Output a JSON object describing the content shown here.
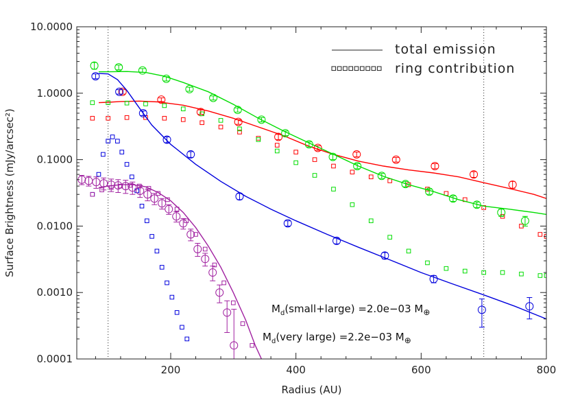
{
  "chart_data": {
    "type": "line",
    "xlabel": "Radius (AU)",
    "ylabel": "Surface Brightness (mJy/arcsec²)",
    "xlim": [
      50,
      800
    ],
    "ylim": [
      0.0001,
      10
    ],
    "y_scale": "log",
    "x_ticks": [
      200,
      400,
      600,
      800
    ],
    "x_tick_labels": [
      "200",
      "400",
      "600",
      "800"
    ],
    "y_ticks": [
      0.0001,
      0.001,
      0.01,
      0.1,
      1,
      10
    ],
    "y_tick_labels": [
      "0.0001",
      "0.0010",
      "0.0100",
      "0.1000",
      "1.0000",
      "10.0000"
    ],
    "vertical_lines": [
      100,
      700
    ],
    "legend": {
      "placement": "top-right",
      "line_label": "total emission",
      "squares_label": "ring contribution"
    },
    "annotations": {
      "small_large": {
        "prefix": "M",
        "sub": "d",
        "text": "(small+large) =2.0e−03 M",
        "symbol": "⊕"
      },
      "very_large": {
        "prefix": "M",
        "sub": "d",
        "text": "(very large) =2.2e−03 M",
        "symbol": "⊕"
      }
    },
    "series": [
      {
        "color": "#ff0000",
        "model_line": [
          [
            85,
            0.72
          ],
          [
            100,
            0.73
          ],
          [
            120,
            0.75
          ],
          [
            150,
            0.76
          ],
          [
            180,
            0.74
          ],
          [
            220,
            0.66
          ],
          [
            260,
            0.54
          ],
          [
            300,
            0.42
          ],
          [
            340,
            0.31
          ],
          [
            380,
            0.23
          ],
          [
            420,
            0.16
          ],
          [
            460,
            0.12
          ],
          [
            500,
            0.095
          ],
          [
            540,
            0.08
          ],
          [
            580,
            0.07
          ],
          [
            620,
            0.063
          ],
          [
            660,
            0.055
          ],
          [
            700,
            0.045
          ],
          [
            740,
            0.037
          ],
          [
            780,
            0.03
          ],
          [
            800,
            0.026
          ]
        ],
        "ring_squares": [
          [
            75,
            0.42
          ],
          [
            100,
            0.42
          ],
          [
            130,
            0.43
          ],
          [
            160,
            0.43
          ],
          [
            190,
            0.42
          ],
          [
            220,
            0.4
          ],
          [
            250,
            0.36
          ],
          [
            280,
            0.31
          ],
          [
            310,
            0.26
          ],
          [
            340,
            0.21
          ],
          [
            370,
            0.165
          ],
          [
            400,
            0.13
          ],
          [
            430,
            0.1
          ],
          [
            460,
            0.08
          ],
          [
            490,
            0.065
          ],
          [
            520,
            0.055
          ],
          [
            550,
            0.048
          ],
          [
            580,
            0.042
          ],
          [
            610,
            0.036
          ],
          [
            640,
            0.031
          ],
          [
            670,
            0.025
          ],
          [
            700,
            0.019
          ],
          [
            730,
            0.014
          ],
          [
            760,
            0.01
          ],
          [
            790,
            0.0075
          ],
          [
            800,
            0.007
          ]
        ],
        "obs": [
          [
            123,
            1.05,
            0.08
          ],
          [
            185,
            0.8,
            0.05
          ],
          [
            248,
            0.52,
            0.04
          ],
          [
            308,
            0.37,
            0.03
          ],
          [
            372,
            0.22,
            0.02
          ],
          [
            435,
            0.15,
            0.012
          ],
          [
            497,
            0.12,
            0.01
          ],
          [
            560,
            0.1,
            0.008
          ],
          [
            622,
            0.08,
            0.007
          ],
          [
            684,
            0.06,
            0.006
          ],
          [
            746,
            0.042,
            0.005
          ]
        ]
      },
      {
        "color": "#00dd00",
        "model_line": [
          [
            85,
            2.1
          ],
          [
            100,
            2.1
          ],
          [
            130,
            2.12
          ],
          [
            160,
            2.05
          ],
          [
            190,
            1.8
          ],
          [
            220,
            1.45
          ],
          [
            260,
            1.05
          ],
          [
            300,
            0.68
          ],
          [
            340,
            0.42
          ],
          [
            380,
            0.27
          ],
          [
            420,
            0.18
          ],
          [
            460,
            0.12
          ],
          [
            500,
            0.08
          ],
          [
            540,
            0.056
          ],
          [
            580,
            0.042
          ],
          [
            620,
            0.033
          ],
          [
            660,
            0.025
          ],
          [
            700,
            0.02
          ],
          [
            740,
            0.018
          ],
          [
            780,
            0.016
          ],
          [
            800,
            0.015
          ]
        ],
        "ring_squares": [
          [
            75,
            0.72
          ],
          [
            100,
            0.72
          ],
          [
            130,
            0.71
          ],
          [
            160,
            0.69
          ],
          [
            190,
            0.65
          ],
          [
            220,
            0.58
          ],
          [
            250,
            0.49
          ],
          [
            280,
            0.39
          ],
          [
            310,
            0.29
          ],
          [
            340,
            0.2
          ],
          [
            370,
            0.135
          ],
          [
            400,
            0.09
          ],
          [
            430,
            0.058
          ],
          [
            460,
            0.036
          ],
          [
            490,
            0.021
          ],
          [
            520,
            0.012
          ],
          [
            550,
            0.0068
          ],
          [
            580,
            0.0042
          ],
          [
            610,
            0.0028
          ],
          [
            640,
            0.0023
          ],
          [
            670,
            0.0021
          ],
          [
            700,
            0.002
          ],
          [
            730,
            0.002
          ],
          [
            760,
            0.0019
          ],
          [
            790,
            0.0018
          ],
          [
            800,
            0.0018
          ]
        ],
        "obs": [
          [
            78,
            2.6,
            0.3
          ],
          [
            117,
            2.45,
            0.2
          ],
          [
            155,
            2.2,
            0.15
          ],
          [
            193,
            1.65,
            0.12
          ],
          [
            230,
            1.15,
            0.08
          ],
          [
            268,
            0.85,
            0.06
          ],
          [
            307,
            0.56,
            0.04
          ],
          [
            345,
            0.4,
            0.03
          ],
          [
            383,
            0.25,
            0.02
          ],
          [
            421,
            0.17,
            0.015
          ],
          [
            459,
            0.11,
            0.01
          ],
          [
            498,
            0.08,
            0.007
          ],
          [
            537,
            0.057,
            0.005
          ],
          [
            575,
            0.043,
            0.004
          ],
          [
            613,
            0.033,
            0.003
          ],
          [
            651,
            0.026,
            0.0025
          ],
          [
            689,
            0.021,
            0.002
          ],
          [
            728,
            0.016,
            0.002
          ],
          [
            766,
            0.012,
            0.002
          ]
        ]
      },
      {
        "color": "#0000dd",
        "model_line": [
          [
            85,
            1.98
          ],
          [
            100,
            1.95
          ],
          [
            115,
            1.6
          ],
          [
            130,
            1.1
          ],
          [
            150,
            0.6
          ],
          [
            170,
            0.33
          ],
          [
            200,
            0.17
          ],
          [
            240,
            0.085
          ],
          [
            280,
            0.047
          ],
          [
            320,
            0.028
          ],
          [
            360,
            0.018
          ],
          [
            400,
            0.012
          ],
          [
            450,
            0.0075
          ],
          [
            500,
            0.0048
          ],
          [
            550,
            0.0031
          ],
          [
            600,
            0.002
          ],
          [
            650,
            0.00135
          ],
          [
            700,
            0.00092
          ],
          [
            750,
            0.00062
          ],
          [
            800,
            0.0004
          ]
        ],
        "ring_squares": [
          [
            75,
            0.03
          ],
          [
            85,
            0.06
          ],
          [
            92,
            0.12
          ],
          [
            100,
            0.19
          ],
          [
            107,
            0.22
          ],
          [
            115,
            0.19
          ],
          [
            122,
            0.13
          ],
          [
            130,
            0.085
          ],
          [
            138,
            0.055
          ],
          [
            146,
            0.034
          ],
          [
            154,
            0.02
          ],
          [
            162,
            0.012
          ],
          [
            170,
            0.007
          ],
          [
            178,
            0.0042
          ],
          [
            186,
            0.0024
          ],
          [
            194,
            0.0014
          ],
          [
            202,
            0.00085
          ],
          [
            210,
            0.0005
          ],
          [
            218,
            0.0003
          ],
          [
            226,
            0.0002
          ]
        ],
        "obs": [
          [
            80,
            1.8,
            0.15
          ],
          [
            118,
            1.05,
            0.08
          ],
          [
            156,
            0.5,
            0.04
          ],
          [
            194,
            0.2,
            0.02
          ],
          [
            232,
            0.12,
            0.012
          ],
          [
            310,
            0.028,
            0.003
          ],
          [
            387,
            0.011,
            0.001
          ],
          [
            465,
            0.006,
            0.0006
          ],
          [
            542,
            0.0036,
            0.0004
          ],
          [
            620,
            0.0016,
            0.0002
          ],
          [
            697,
            0.00055,
            0.00025
          ],
          [
            773,
            0.00062,
            0.00022
          ]
        ]
      },
      {
        "color": "#a020a0",
        "model_line": [
          [
            85,
            0.038
          ],
          [
            100,
            0.04
          ],
          [
            120,
            0.042
          ],
          [
            140,
            0.042
          ],
          [
            160,
            0.039
          ],
          [
            180,
            0.032
          ],
          [
            200,
            0.024
          ],
          [
            220,
            0.016
          ],
          [
            240,
            0.0095
          ],
          [
            260,
            0.005
          ],
          [
            280,
            0.0024
          ],
          [
            300,
            0.001
          ],
          [
            320,
            0.00038
          ],
          [
            335,
            0.00016
          ],
          [
            345,
            0.0001
          ]
        ],
        "ring_squares": [
          [
            75,
            0.03
          ],
          [
            90,
            0.035
          ],
          [
            105,
            0.038
          ],
          [
            120,
            0.04
          ],
          [
            135,
            0.041
          ],
          [
            150,
            0.04
          ],
          [
            165,
            0.037
          ],
          [
            180,
            0.031
          ],
          [
            195,
            0.025
          ],
          [
            210,
            0.018
          ],
          [
            225,
            0.012
          ],
          [
            240,
            0.0075
          ],
          [
            255,
            0.0045
          ],
          [
            270,
            0.0026
          ],
          [
            285,
            0.0014
          ],
          [
            300,
            0.0007
          ],
          [
            315,
            0.00034
          ],
          [
            330,
            0.00016
          ]
        ],
        "obs": [
          [
            58,
            0.05,
            0.008
          ],
          [
            69,
            0.048,
            0.008
          ],
          [
            81,
            0.046,
            0.009
          ],
          [
            93,
            0.044,
            0.009
          ],
          [
            105,
            0.042,
            0.009
          ],
          [
            116,
            0.041,
            0.009
          ],
          [
            128,
            0.04,
            0.009
          ],
          [
            139,
            0.038,
            0.008
          ],
          [
            151,
            0.034,
            0.007
          ],
          [
            163,
            0.03,
            0.006
          ],
          [
            174,
            0.026,
            0.005
          ],
          [
            186,
            0.022,
            0.004
          ],
          [
            197,
            0.018,
            0.003
          ],
          [
            209,
            0.014,
            0.0025
          ],
          [
            220,
            0.011,
            0.002
          ],
          [
            232,
            0.0075,
            0.0015
          ],
          [
            243,
            0.0045,
            0.001
          ],
          [
            255,
            0.0032,
            0.0007
          ],
          [
            267,
            0.002,
            0.0005
          ],
          [
            278,
            0.001,
            0.0003
          ],
          [
            290,
            0.0005,
            0.00025
          ],
          [
            301,
            0.00016,
            0.0004
          ]
        ]
      }
    ]
  }
}
